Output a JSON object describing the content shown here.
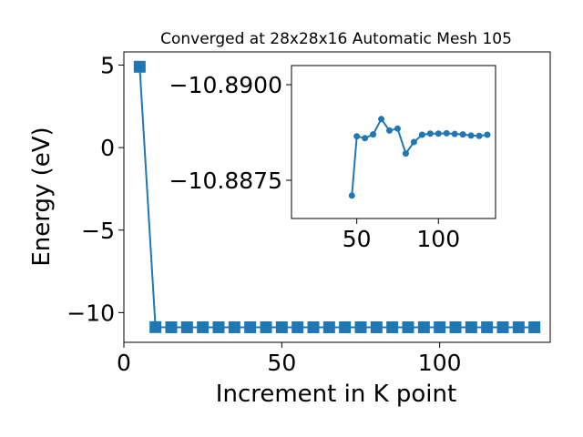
{
  "chart_data": [
    {
      "type": "line",
      "title": "Converged at 28x28x16 Automatic Mesh 105",
      "xlabel": "Increment in K point",
      "ylabel": "Energy (eV)",
      "xlim": [
        0,
        135
      ],
      "ylim": [
        -11.8,
        5.8
      ],
      "xticks": [
        0,
        50,
        100
      ],
      "yticks": [
        5,
        0,
        -5,
        -10
      ],
      "tick_labels": {
        "x": [
          "0",
          "50",
          "100"
        ],
        "y": [
          "5",
          "0",
          "−5",
          "−10"
        ]
      },
      "marker": "square",
      "color": "#1f77b4",
      "grid": false,
      "series": [
        {
          "x": [
            5,
            10,
            15,
            20,
            25,
            30,
            35,
            40,
            45,
            50,
            55,
            60,
            65,
            70,
            75,
            80,
            85,
            90,
            95,
            100,
            105,
            110,
            115,
            120,
            125,
            130
          ],
          "y": [
            4.9,
            -10.88,
            -10.888,
            -10.889,
            -10.8885,
            -10.8886,
            -10.8887,
            -10.8891,
            -10.8887,
            -10.8886,
            -10.8887,
            -10.8887,
            -10.88865,
            -10.8886,
            -10.8886,
            -10.8886,
            -10.8886,
            -10.8886,
            -10.8886,
            -10.8886,
            -10.8886,
            -10.8886,
            -10.8886,
            -10.8886,
            -10.8886,
            -10.8886
          ]
        }
      ]
    },
    {
      "type": "line",
      "title": "",
      "xlim": [
        10,
        135
      ],
      "ylim": [
        -10.8865,
        -10.8905
      ],
      "xticks": [
        50,
        100
      ],
      "yticks": [
        -10.89,
        -10.8875
      ],
      "tick_labels": {
        "x": [
          "50",
          "100"
        ],
        "y": [
          "−10.8900",
          "−10.8875"
        ]
      },
      "marker": "circle",
      "color": "#1f77b4",
      "series": [
        {
          "x": [
            47,
            50,
            55,
            60,
            65,
            70,
            75,
            80,
            85,
            90,
            95,
            100,
            105,
            110,
            115,
            120,
            125,
            130
          ],
          "y": [
            -10.8871,
            -10.88865,
            -10.8886,
            -10.8887,
            -10.8891,
            -10.8888,
            -10.88885,
            -10.8882,
            -10.8885,
            -10.88869,
            -10.88872,
            -10.88872,
            -10.88873,
            -10.88871,
            -10.8887,
            -10.88867,
            -10.88866,
            -10.88869
          ]
        }
      ]
    }
  ]
}
